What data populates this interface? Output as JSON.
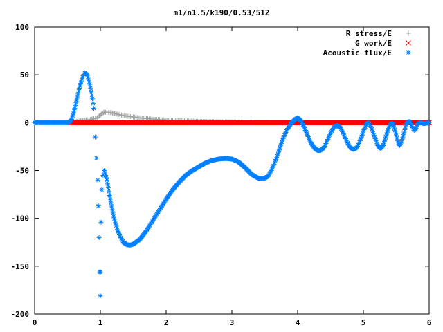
{
  "chart_data": {
    "type": "scatter",
    "title": "m1/n1.5/k190/0.53/512",
    "xlabel": "",
    "ylabel": "",
    "xlim": [
      0,
      6
    ],
    "ylim": [
      -200,
      100
    ],
    "xticks": [
      0,
      1,
      2,
      3,
      4,
      5,
      6
    ],
    "yticks": [
      -200,
      -150,
      -100,
      -50,
      0,
      50,
      100
    ],
    "grid": false,
    "legend": "top-right",
    "series": [
      {
        "name": "R stress/E",
        "marker": "+",
        "color": "#a0a0a0",
        "points": [
          [
            0.55,
            0.5
          ],
          [
            0.6,
            1
          ],
          [
            0.65,
            1.5
          ],
          [
            0.7,
            2
          ],
          [
            0.75,
            2.5
          ],
          [
            0.8,
            3
          ],
          [
            0.85,
            3.5
          ],
          [
            0.9,
            4
          ],
          [
            0.95,
            5
          ],
          [
            1.0,
            8
          ],
          [
            1.03,
            10
          ],
          [
            1.06,
            11
          ],
          [
            1.1,
            11
          ],
          [
            1.15,
            10.5
          ],
          [
            1.2,
            10
          ],
          [
            1.25,
            9
          ],
          [
            1.3,
            8.2
          ],
          [
            1.4,
            7
          ],
          [
            1.5,
            6
          ],
          [
            1.6,
            5
          ],
          [
            1.7,
            4.3
          ],
          [
            1.8,
            3.7
          ],
          [
            1.9,
            3.2
          ],
          [
            2.0,
            2.8
          ],
          [
            2.2,
            2.2
          ],
          [
            2.4,
            1.7
          ],
          [
            2.6,
            1.3
          ],
          [
            2.8,
            1.0
          ],
          [
            3.0,
            0.8
          ],
          [
            3.2,
            0.6
          ],
          [
            3.5,
            0.4
          ],
          [
            3.8,
            0.3
          ],
          [
            4.2,
            0.2
          ],
          [
            4.6,
            0.1
          ],
          [
            5.0,
            0.1
          ],
          [
            5.5,
            0.05
          ],
          [
            6.0,
            0
          ]
        ]
      },
      {
        "name": "G work/E",
        "marker": "x",
        "color": "#ff0000",
        "points": [
          [
            0.55,
            0
          ],
          [
            6.0,
            0
          ]
        ]
      },
      {
        "name": "Acoustic flux/E",
        "marker": "*",
        "color": "#0080ff",
        "points": [
          [
            0.0,
            0
          ],
          [
            0.52,
            0
          ],
          [
            0.56,
            3
          ],
          [
            0.6,
            12
          ],
          [
            0.64,
            24
          ],
          [
            0.68,
            36
          ],
          [
            0.72,
            46
          ],
          [
            0.76,
            52
          ],
          [
            0.8,
            50
          ],
          [
            0.84,
            40
          ],
          [
            0.88,
            25
          ],
          [
            0.9,
            15
          ],
          [
            0.92,
            -15
          ],
          [
            0.94,
            -37
          ],
          [
            0.96,
            -60
          ],
          [
            0.97,
            -87
          ],
          [
            0.98,
            -120
          ],
          [
            0.99,
            -156
          ],
          [
            1.0,
            -181
          ],
          [
            1.0,
            -156
          ],
          [
            1.01,
            -104
          ],
          [
            1.02,
            -70
          ],
          [
            1.04,
            -55
          ],
          [
            1.06,
            -50
          ],
          [
            1.1,
            -60
          ],
          [
            1.15,
            -80
          ],
          [
            1.2,
            -98
          ],
          [
            1.25,
            -110
          ],
          [
            1.3,
            -119
          ],
          [
            1.35,
            -125
          ],
          [
            1.4,
            -127.5
          ],
          [
            1.45,
            -128
          ],
          [
            1.5,
            -127
          ],
          [
            1.6,
            -122
          ],
          [
            1.7,
            -113
          ],
          [
            1.8,
            -102
          ],
          [
            1.9,
            -91
          ],
          [
            2.0,
            -80
          ],
          [
            2.1,
            -70
          ],
          [
            2.2,
            -62
          ],
          [
            2.3,
            -55
          ],
          [
            2.4,
            -50
          ],
          [
            2.5,
            -46
          ],
          [
            2.6,
            -42
          ],
          [
            2.7,
            -39.5
          ],
          [
            2.8,
            -38
          ],
          [
            2.9,
            -37.5
          ],
          [
            3.0,
            -38
          ],
          [
            3.1,
            -41
          ],
          [
            3.2,
            -47
          ],
          [
            3.3,
            -54
          ],
          [
            3.4,
            -58
          ],
          [
            3.5,
            -58
          ],
          [
            3.55,
            -56
          ],
          [
            3.6,
            -50
          ],
          [
            3.65,
            -42
          ],
          [
            3.7,
            -33
          ],
          [
            3.75,
            -22
          ],
          [
            3.8,
            -13
          ],
          [
            3.85,
            -6
          ],
          [
            3.9,
            -1
          ],
          [
            3.95,
            3
          ],
          [
            4.0,
            5
          ],
          [
            4.05,
            2
          ],
          [
            4.1,
            -5
          ],
          [
            4.15,
            -13
          ],
          [
            4.2,
            -21
          ],
          [
            4.25,
            -26
          ],
          [
            4.3,
            -29
          ],
          [
            4.35,
            -29
          ],
          [
            4.4,
            -26
          ],
          [
            4.45,
            -19
          ],
          [
            4.5,
            -11
          ],
          [
            4.55,
            -5
          ],
          [
            4.6,
            -3
          ],
          [
            4.65,
            -5
          ],
          [
            4.7,
            -12
          ],
          [
            4.75,
            -20
          ],
          [
            4.8,
            -26
          ],
          [
            4.85,
            -28
          ],
          [
            4.9,
            -26
          ],
          [
            4.95,
            -19
          ],
          [
            5.0,
            -9
          ],
          [
            5.05,
            -1
          ],
          [
            5.08,
            0
          ],
          [
            5.12,
            -5
          ],
          [
            5.17,
            -15
          ],
          [
            5.22,
            -24
          ],
          [
            5.26,
            -27
          ],
          [
            5.3,
            -24
          ],
          [
            5.34,
            -15
          ],
          [
            5.38,
            -6
          ],
          [
            5.42,
            -1
          ],
          [
            5.45,
            -1
          ],
          [
            5.48,
            -8
          ],
          [
            5.52,
            -19
          ],
          [
            5.55,
            -24
          ],
          [
            5.58,
            -20
          ],
          [
            5.62,
            -10
          ],
          [
            5.65,
            -2
          ],
          [
            5.68,
            1
          ],
          [
            5.71,
            1
          ],
          [
            5.74,
            -4
          ],
          [
            5.77,
            -8
          ],
          [
            5.8,
            -6
          ],
          [
            5.83,
            -1
          ],
          [
            5.87,
            0
          ],
          [
            5.92,
            -1
          ],
          [
            6.0,
            0
          ]
        ]
      }
    ]
  }
}
